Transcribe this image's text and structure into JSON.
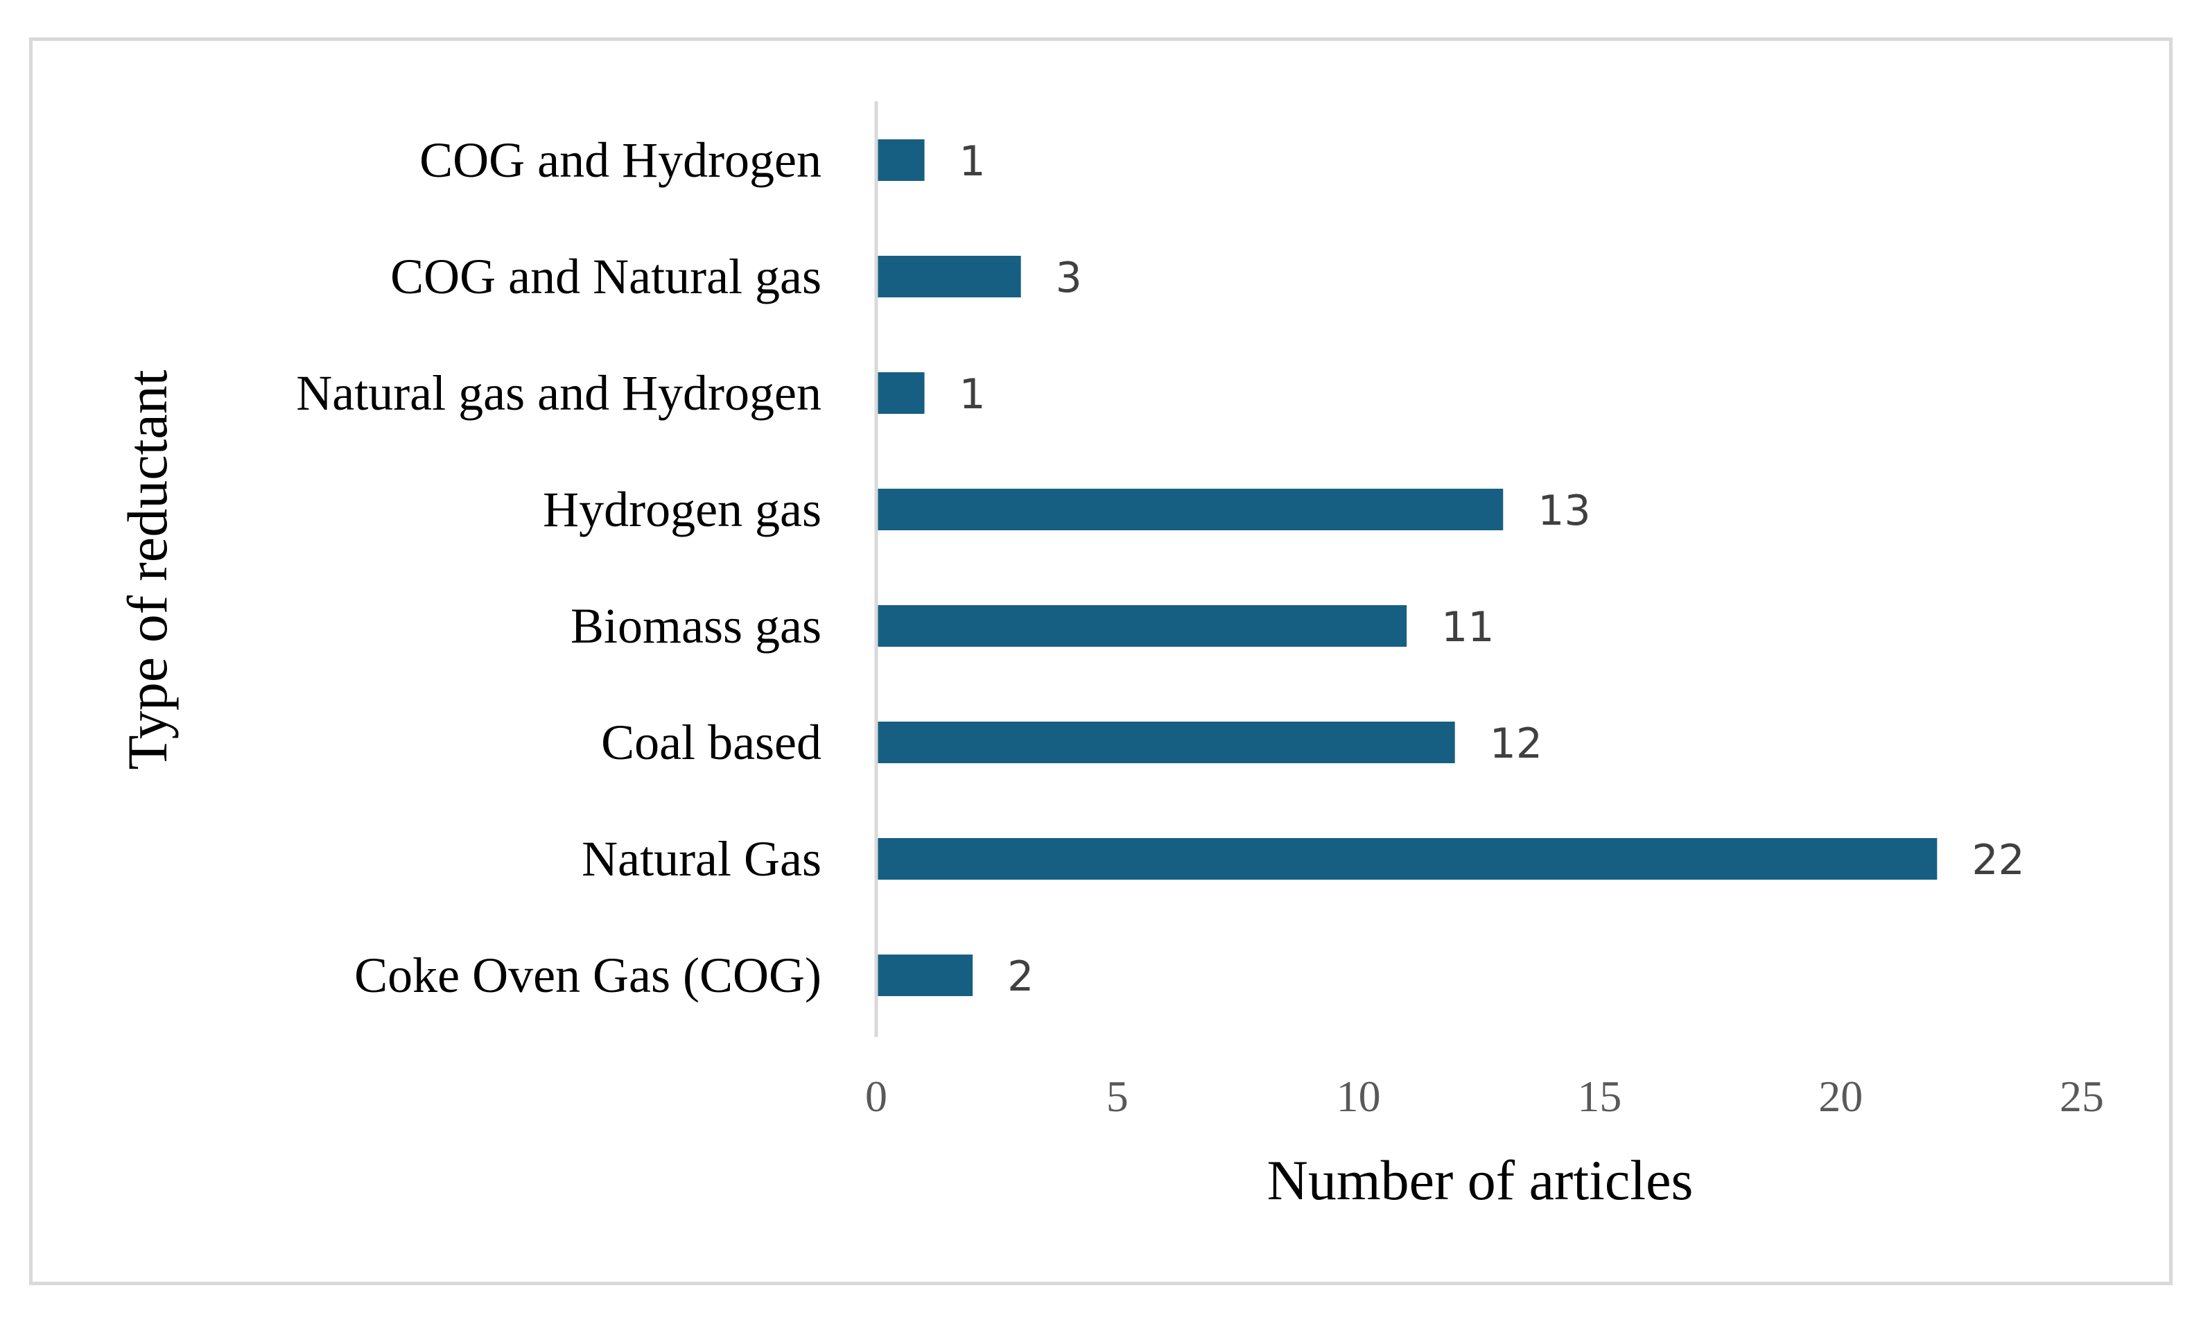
{
  "chart_data": {
    "type": "bar",
    "orientation": "horizontal",
    "categories": [
      "COG and Hydrogen",
      "COG and Natural gas",
      "Natural gas and Hydrogen",
      "Hydrogen gas",
      "Biomass gas",
      "Coal based",
      "Natural Gas",
      "Coke Oven Gas (COG)"
    ],
    "values": [
      1,
      3,
      1,
      13,
      11,
      12,
      22,
      2
    ],
    "data_labels": [
      "1",
      "3",
      "1",
      "13",
      "11",
      "12",
      "22",
      "2"
    ],
    "xlabel": "Number of articles",
    "ylabel": "Type of reductant",
    "xlim": [
      0,
      25
    ],
    "xticks": [
      "0",
      "5",
      "10",
      "15",
      "20",
      "25"
    ],
    "grid": false,
    "legend": "none",
    "bar_color": "#175f82"
  }
}
